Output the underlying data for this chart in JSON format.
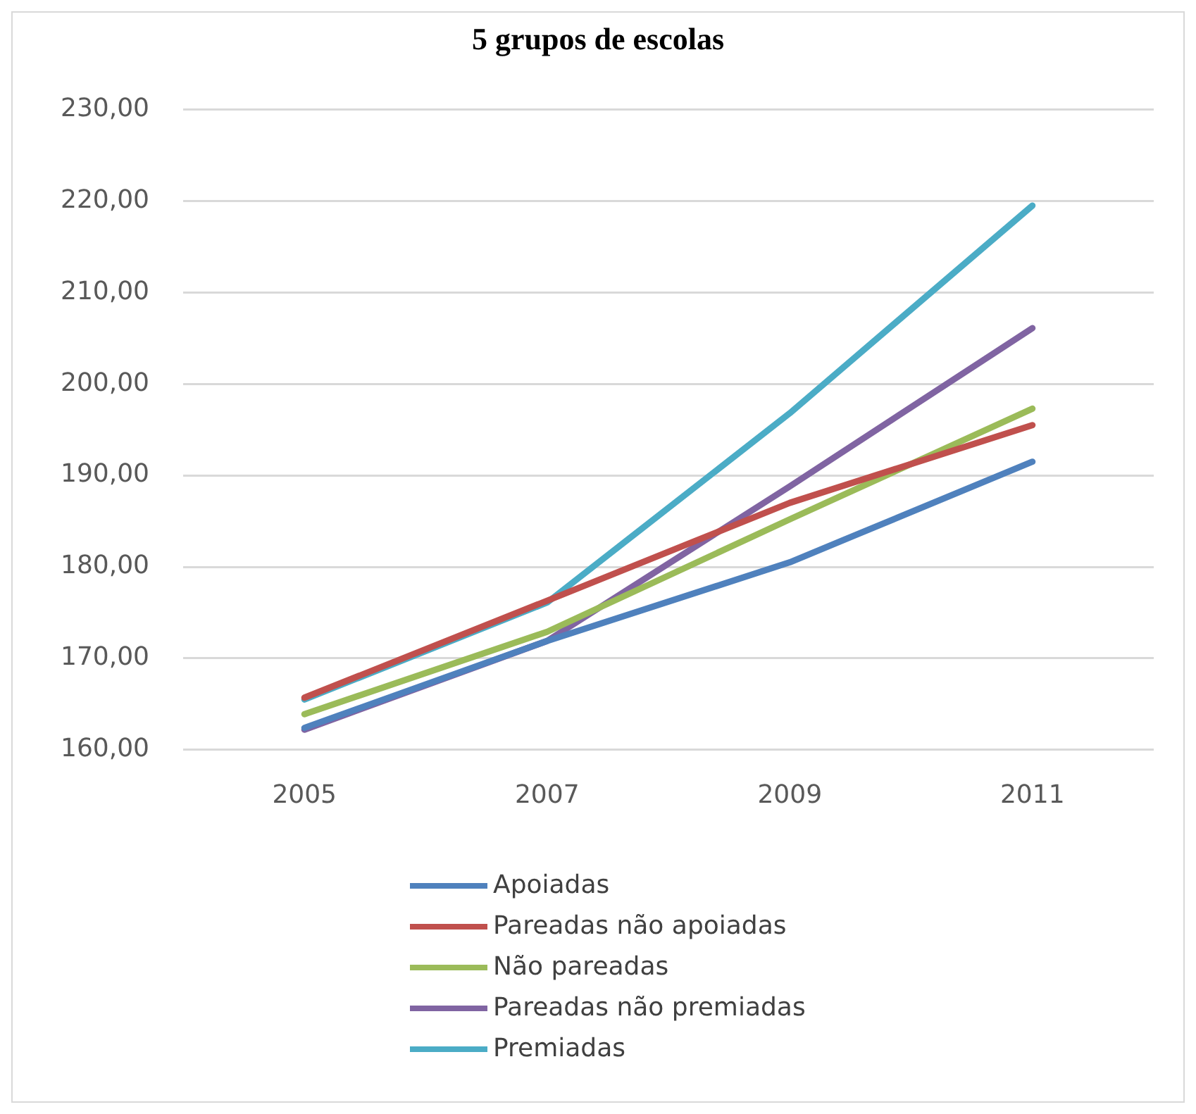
{
  "chart_data": {
    "type": "line",
    "title": "5 grupos de escolas",
    "categories": [
      "2005",
      "2007",
      "2009",
      "2011"
    ],
    "series": [
      {
        "name": "Apoiadas",
        "color": "#4f81bd",
        "values": [
          162.4,
          171.9,
          180.5,
          191.5
        ]
      },
      {
        "name": "Pareadas não apoiadas",
        "color": "#c0504d",
        "values": [
          165.7,
          176.3,
          187.0,
          195.5
        ]
      },
      {
        "name": "Não pareadas",
        "color": "#9bbb59",
        "values": [
          163.9,
          172.9,
          185.2,
          197.3
        ]
      },
      {
        "name": "Pareadas não premiadas",
        "color": "#8064a2",
        "values": [
          162.2,
          171.9,
          188.8,
          206.1
        ]
      },
      {
        "name": "Premiadas",
        "color": "#4bacc6",
        "values": [
          165.5,
          176.1,
          196.8,
          219.5
        ]
      }
    ],
    "ylim": [
      160,
      230
    ],
    "yticks": [
      {
        "value": 160,
        "label": "160,00"
      },
      {
        "value": 170,
        "label": "170,00"
      },
      {
        "value": 180,
        "label": "180,00"
      },
      {
        "value": 190,
        "label": "190,00"
      },
      {
        "value": 200,
        "label": "200,00"
      },
      {
        "value": 210,
        "label": "210,00"
      },
      {
        "value": 220,
        "label": "220,00"
      },
      {
        "value": 230,
        "label": "230,00"
      }
    ],
    "grid": "y",
    "legend": "bottom",
    "marker": "none",
    "line_style": "solid"
  }
}
